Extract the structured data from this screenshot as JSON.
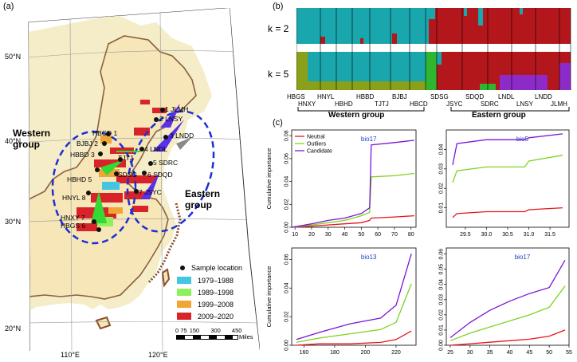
{
  "panels": {
    "a": "(a)",
    "b": "(b)",
    "c": "(c)"
  },
  "map": {
    "lat_labels": [
      "50°N",
      "40°N",
      "30°N",
      "20°N"
    ],
    "lon_labels": [
      "110°E",
      "120°E"
    ],
    "western_group": [
      "Western",
      "group"
    ],
    "eastern_group": [
      "Eastern",
      "group"
    ],
    "sites": [
      {
        "id": "1 JLMH"
      },
      {
        "id": "2 LNSY"
      },
      {
        "id": "3 LNDD"
      },
      {
        "id": "4 LNDL"
      },
      {
        "id": "5 SDRC"
      },
      {
        "id": "6 SDQD"
      },
      {
        "id": "7 JSYC"
      },
      {
        "id": "HBCD 1"
      },
      {
        "id": "BJBJ 2"
      },
      {
        "id": "HBBD 3"
      },
      {
        "id": "TJTJ"
      },
      {
        "id": "HBHD 5"
      },
      {
        "id": "SDSG"
      },
      {
        "id": "HNYL 8"
      },
      {
        "id": "HNXY 7"
      },
      {
        "id": "HBGS 6"
      }
    ],
    "legend": {
      "sample_location": "Sample location",
      "periods": [
        {
          "label": "1979–1988",
          "color": "#43c6e0"
        },
        {
          "label": "1989–1998",
          "color": "#8ef05a"
        },
        {
          "label": "1999–2008",
          "color": "#f0a535"
        },
        {
          "label": "2009–2020",
          "color": "#d9232a"
        }
      ]
    },
    "scale": {
      "ticks": [
        "0",
        "75",
        "150",
        "300",
        "450"
      ],
      "unit": "Miles"
    }
  },
  "structure": {
    "k_labels": [
      "k = 2",
      "k = 5"
    ],
    "pops_top": [
      "HBGS",
      "HNYL",
      "HBBD",
      "BJBJ",
      "SDSG",
      "SDQD",
      "LNDL",
      "LNDD"
    ],
    "pops_bottom": [
      "HNXY",
      "HBHD",
      "TJTJ",
      "HBCD",
      "JSYC",
      "SDRC",
      "LNSY",
      "JLMH"
    ],
    "western_group": "Western group",
    "eastern_group": "Eastern group",
    "colors": {
      "cyan": "#1aa6ad",
      "red": "#b3171c",
      "green": "#2fb52f",
      "olive": "#8aa018",
      "purple": "#8d2bc8"
    }
  },
  "chart_data": [
    {
      "type": "line",
      "title": "bio17",
      "ylabel": "Cumulative importance",
      "xlim": [
        8,
        83
      ],
      "ylim": [
        0,
        0.085
      ],
      "xticks": [
        "10",
        "20",
        "30",
        "40",
        "50",
        "60",
        "70",
        "80"
      ],
      "yticks": [
        "0.00",
        "0.02",
        "0.04",
        "0.06",
        "0.08"
      ],
      "legend": [
        "Neutral",
        "Outliers",
        "Candidate"
      ],
      "series": [
        {
          "name": "Neutral",
          "color": "#e8141c",
          "x": [
            8,
            20,
            30,
            40,
            50,
            55,
            56,
            70,
            82
          ],
          "y": [
            0.0,
            0.001,
            0.002,
            0.003,
            0.004,
            0.006,
            0.008,
            0.009,
            0.01
          ]
        },
        {
          "name": "Outliers",
          "color": "#7ed321",
          "x": [
            8,
            20,
            30,
            40,
            50,
            55,
            56,
            70,
            82
          ],
          "y": [
            0.0,
            0.002,
            0.004,
            0.006,
            0.01,
            0.013,
            0.044,
            0.045,
            0.047
          ]
        },
        {
          "name": "Candidate",
          "color": "#7b16d8",
          "x": [
            8,
            20,
            30,
            40,
            50,
            55,
            56,
            70,
            82
          ],
          "y": [
            0.0,
            0.003,
            0.006,
            0.008,
            0.012,
            0.017,
            0.072,
            0.074,
            0.076
          ]
        }
      ]
    },
    {
      "type": "line",
      "title": "bio5",
      "ylabel": "",
      "xlim": [
        29.05,
        31.95
      ],
      "ylim": [
        0,
        0.05
      ],
      "xticks": [
        "29.5",
        "30.0",
        "30.5",
        "31.0",
        "31.5"
      ],
      "yticks": [
        "0.01",
        "0.02",
        "0.03",
        "0.04"
      ],
      "series": [
        {
          "name": "Neutral",
          "color": "#e8141c",
          "x": [
            29.2,
            29.3,
            30.0,
            30.9,
            31.0,
            31.8
          ],
          "y": [
            0.005,
            0.007,
            0.008,
            0.008,
            0.009,
            0.01
          ]
        },
        {
          "name": "Outliers",
          "color": "#7ed321",
          "x": [
            29.2,
            29.3,
            30.0,
            30.9,
            31.0,
            31.8
          ],
          "y": [
            0.023,
            0.029,
            0.031,
            0.031,
            0.034,
            0.037
          ]
        },
        {
          "name": "Candidate",
          "color": "#7b16d8",
          "x": [
            29.2,
            29.3,
            30.0,
            30.9,
            31.0,
            31.8
          ],
          "y": [
            0.032,
            0.043,
            0.045,
            0.045,
            0.046,
            0.048
          ]
        }
      ]
    },
    {
      "type": "line",
      "title": "bio13",
      "ylabel": "Cumulative importance",
      "xlim": [
        152,
        233
      ],
      "ylim": [
        0,
        0.068
      ],
      "xticks": [
        "160",
        "180",
        "200",
        "220"
      ],
      "yticks": [
        "0.00",
        "0.02",
        "0.04",
        "0.06"
      ],
      "series": [
        {
          "name": "Neutral",
          "color": "#e8141c",
          "x": [
            155,
            170,
            190,
            210,
            220,
            230
          ],
          "y": [
            0.0,
            0.001,
            0.001,
            0.002,
            0.004,
            0.01
          ]
        },
        {
          "name": "Outliers",
          "color": "#7ed321",
          "x": [
            155,
            170,
            190,
            210,
            220,
            230
          ],
          "y": [
            0.002,
            0.005,
            0.008,
            0.011,
            0.016,
            0.043
          ]
        },
        {
          "name": "Candidate",
          "color": "#7b16d8",
          "x": [
            155,
            170,
            190,
            210,
            220,
            230
          ],
          "y": [
            0.004,
            0.009,
            0.015,
            0.019,
            0.028,
            0.064
          ]
        }
      ]
    },
    {
      "type": "line",
      "title": "bio17",
      "ylabel": "",
      "xlim": [
        24,
        55
      ],
      "ylim": [
        0,
        0.064
      ],
      "xticks": [
        "25",
        "30",
        "35",
        "40",
        "45",
        "50",
        "55"
      ],
      "yticks": [
        "0.00",
        "0.01",
        "0.02",
        "0.03",
        "0.04",
        "0.05",
        "0.06"
      ],
      "series": [
        {
          "name": "Neutral",
          "color": "#e8141c",
          "x": [
            25,
            30,
            35,
            40,
            45,
            50,
            54
          ],
          "y": [
            0.0,
            0.001,
            0.002,
            0.003,
            0.004,
            0.006,
            0.01
          ]
        },
        {
          "name": "Outliers",
          "color": "#7ed321",
          "x": [
            25,
            30,
            35,
            40,
            45,
            50,
            54
          ],
          "y": [
            0.003,
            0.008,
            0.012,
            0.016,
            0.02,
            0.025,
            0.039
          ]
        },
        {
          "name": "Candidate",
          "color": "#7b16d8",
          "x": [
            25,
            30,
            35,
            40,
            45,
            50,
            54
          ],
          "y": [
            0.005,
            0.015,
            0.023,
            0.029,
            0.034,
            0.038,
            0.056
          ]
        }
      ]
    }
  ]
}
